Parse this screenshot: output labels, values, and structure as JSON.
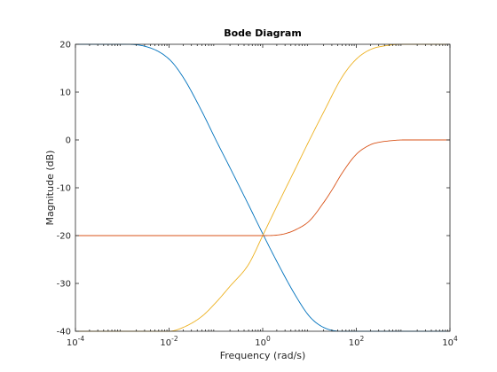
{
  "chart_data": {
    "type": "line",
    "title": "Bode Diagram",
    "xlabel": "Frequency  (rad/s)",
    "ylabel": "Magnitude (dB)",
    "xscale": "log",
    "xlim": [
      0.0001,
      10000
    ],
    "ylim": [
      -40,
      20
    ],
    "grid": false,
    "x_ticks": [
      {
        "value": 0.0001,
        "base": "10",
        "exp": "-4"
      },
      {
        "value": 0.01,
        "base": "10",
        "exp": "-2"
      },
      {
        "value": 1,
        "base": "10",
        "exp": "0"
      },
      {
        "value": 100,
        "base": "10",
        "exp": "2"
      },
      {
        "value": 10000,
        "base": "10",
        "exp": "4"
      }
    ],
    "y_ticks": [
      {
        "value": 20,
        "label": "20"
      },
      {
        "value": 10,
        "label": "10"
      },
      {
        "value": 0,
        "label": "0"
      },
      {
        "value": -10,
        "label": "-10"
      },
      {
        "value": -20,
        "label": "-20"
      },
      {
        "value": -30,
        "label": "-30"
      },
      {
        "value": -40,
        "label": "-40"
      }
    ],
    "series": [
      {
        "color": "#0072BD",
        "x": [
          0.0001,
          0.001,
          0.003,
          0.01,
          0.02,
          0.05,
          0.1,
          0.2,
          0.5,
          1,
          2,
          5,
          10,
          20,
          50,
          100,
          1000,
          10000
        ],
        "y": [
          20,
          20,
          19.6,
          16.9,
          13.1,
          6.0,
          0.0,
          -5.8,
          -13.6,
          -19.6,
          -25.4,
          -32.5,
          -36.9,
          -39.2,
          -40,
          -40,
          -40,
          -40
        ]
      },
      {
        "color": "#EDB120",
        "x": [
          0.0001,
          0.001,
          0.01,
          0.02,
          0.05,
          0.1,
          0.2,
          0.5,
          1,
          2,
          5,
          10,
          20,
          50,
          100,
          200,
          500,
          1000,
          10000
        ],
        "y": [
          -40,
          -40,
          -40,
          -39.2,
          -36.9,
          -34.0,
          -30.6,
          -26.0,
          -20.0,
          -13.9,
          -6.0,
          0.0,
          5.8,
          13.2,
          16.9,
          18.9,
          19.8,
          20,
          20
        ]
      },
      {
        "color": "#D95319",
        "x": [
          0.0001,
          0.001,
          0.01,
          0.1,
          1,
          2,
          3,
          5,
          10,
          20,
          30,
          50,
          100,
          200,
          300,
          500,
          1000,
          10000
        ],
        "y": [
          -20,
          -20,
          -20,
          -20,
          -20,
          -19.9,
          -19.6,
          -18.8,
          -16.9,
          -13.1,
          -10.5,
          -6.9,
          -3.0,
          -1.0,
          -0.5,
          -0.2,
          0,
          0
        ]
      }
    ]
  }
}
